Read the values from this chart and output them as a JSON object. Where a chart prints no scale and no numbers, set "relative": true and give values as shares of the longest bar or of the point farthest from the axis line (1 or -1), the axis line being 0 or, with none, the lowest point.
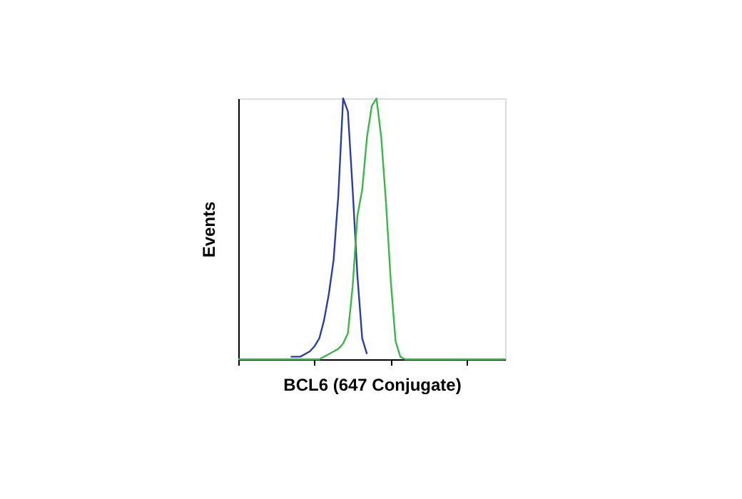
{
  "chart_data": {
    "type": "line",
    "relative": true,
    "xlabel": "BCL6 (647 Conjugate)",
    "ylabel": "Events",
    "tick_labels": false,
    "grid": false,
    "marker": "none",
    "line_style": "solid",
    "categories": [
      null,
      null,
      null,
      null,
      null,
      null,
      null,
      null,
      null,
      null,
      null,
      null,
      null,
      null,
      null,
      null,
      null,
      null,
      null,
      null,
      null,
      null,
      null,
      null,
      null,
      null,
      null,
      null,
      null,
      null,
      null,
      null,
      null,
      null,
      null,
      null,
      null,
      null,
      null,
      null,
      null,
      null,
      null,
      null,
      null,
      null,
      null,
      null,
      null,
      null,
      null,
      null,
      null,
      null,
      null,
      null,
      null
    ],
    "series": [
      {
        "color": "#2b3f9e",
        "values": [
          null,
          null,
          null,
          null,
          null,
          null,
          null,
          null,
          null,
          null,
          null,
          0.01,
          0.01,
          0.01,
          0.02,
          0.03,
          0.05,
          0.08,
          0.15,
          0.25,
          0.38,
          0.63,
          1.0,
          0.95,
          0.65,
          0.32,
          0.08,
          0.02,
          null,
          null,
          null,
          null,
          null,
          null,
          null,
          null,
          null,
          null,
          null,
          null,
          null,
          null,
          null,
          null,
          null,
          null,
          null,
          null,
          null,
          null,
          null,
          null,
          null,
          null,
          null,
          null,
          null
        ]
      },
      {
        "color": "#3cb54a",
        "values": [
          0,
          0,
          0,
          0,
          0,
          0,
          0,
          0,
          0,
          0,
          0,
          0,
          0,
          0,
          0,
          0,
          0,
          0,
          0.01,
          0.02,
          0.03,
          0.04,
          0.06,
          0.1,
          0.28,
          0.55,
          0.65,
          0.85,
          0.97,
          1.0,
          0.85,
          0.6,
          0.3,
          0.07,
          0.01,
          0,
          0,
          0,
          0,
          0,
          0,
          0,
          0,
          0,
          0,
          0,
          0,
          0,
          0,
          0,
          0,
          0,
          0,
          0,
          0,
          0,
          0
        ]
      }
    ]
  }
}
